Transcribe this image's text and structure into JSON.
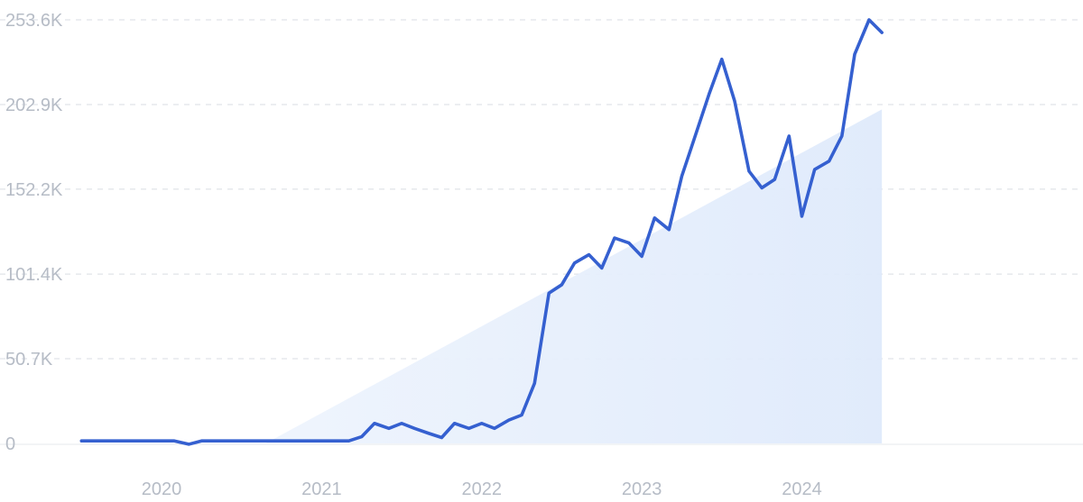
{
  "chart_data": {
    "type": "line",
    "title": "",
    "xlabel": "",
    "ylabel": "",
    "colors": {
      "line": "#3560d0",
      "trend_fill_start": "#eef4fd",
      "trend_fill_end": "#dfeafb"
    },
    "grid": true,
    "legend": "none",
    "ylim": [
      0,
      253600
    ],
    "y_ticks": [
      {
        "value": 0,
        "label": "0"
      },
      {
        "value": 50700,
        "label": "50.7K"
      },
      {
        "value": 101400,
        "label": "101.4K"
      },
      {
        "value": 152200,
        "label": "152.2K"
      },
      {
        "value": 202900,
        "label": "202.9K"
      },
      {
        "value": 253600,
        "label": "253.6K"
      }
    ],
    "x_ticks": [
      {
        "value": 2020,
        "label": "2020"
      },
      {
        "value": 2021,
        "label": "2021"
      },
      {
        "value": 2022,
        "label": "2022"
      },
      {
        "value": 2023,
        "label": "2023"
      },
      {
        "value": 2024,
        "label": "2024"
      }
    ],
    "xlim": [
      2019.47,
      2025.7
    ],
    "series": [
      {
        "x": [
          2019.5,
          2019.58,
          2019.67,
          2019.75,
          2019.83,
          2019.92,
          2020.0,
          2020.08,
          2020.17,
          2020.25,
          2020.33,
          2020.42,
          2020.5,
          2020.58,
          2020.67,
          2020.75,
          2020.83,
          2020.92,
          2021.0,
          2021.08,
          2021.17,
          2021.25,
          2021.33,
          2021.42,
          2021.5,
          2021.58,
          2021.67,
          2021.75,
          2021.83,
          2021.92,
          2022.0,
          2022.08,
          2022.17,
          2022.25,
          2022.33,
          2022.42,
          2022.5,
          2022.58,
          2022.67,
          2022.75,
          2022.83,
          2022.92,
          2023.0,
          2023.08,
          2023.17,
          2023.25,
          2023.33,
          2023.42,
          2023.5,
          2023.58,
          2023.67,
          2023.75,
          2023.83,
          2023.92,
          2024.0,
          2024.08,
          2024.17,
          2024.25,
          2024.33,
          2024.42,
          2024.5
        ],
        "values": [
          1500,
          1500,
          1500,
          1500,
          1500,
          1500,
          1500,
          1500,
          -500,
          1500,
          1500,
          1500,
          1500,
          1500,
          1500,
          1500,
          1500,
          1500,
          1500,
          1500,
          1500,
          4000,
          12000,
          9000,
          12000,
          9000,
          6000,
          3500,
          12000,
          9000,
          12000,
          9000,
          14000,
          17000,
          36000,
          90000,
          95000,
          108000,
          113000,
          105000,
          123000,
          120000,
          112000,
          135000,
          128000,
          160000,
          183000,
          209000,
          230000,
          205000,
          163000,
          153000,
          158000,
          184000,
          136000,
          164000,
          169000,
          184000,
          233000,
          253600,
          246000
        ]
      }
    ],
    "trend_band": {
      "start": {
        "x": 2020.65,
        "y": 0
      },
      "end": {
        "x": 2024.5,
        "y": 200000
      }
    }
  }
}
